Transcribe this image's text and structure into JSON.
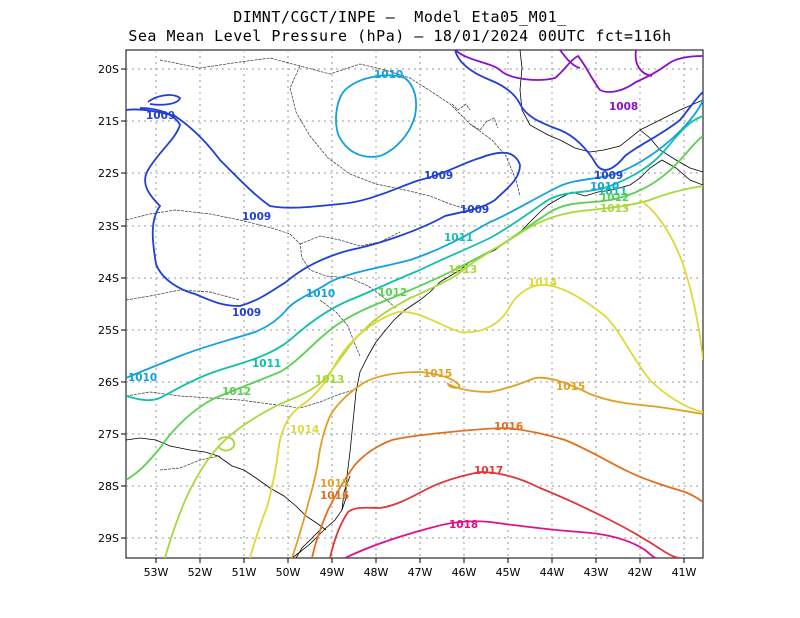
{
  "title_line1": "DIMNT/CGCT/INPE –  Model Eta05_M01_",
  "title_line2": "Sea Mean Level Pressure (hPa) – 18/01/2024 00UTC fct=116h",
  "axes": {
    "lon_labels": [
      "53W",
      "52W",
      "51W",
      "50W",
      "49W",
      "48W",
      "47W",
      "46W",
      "45W",
      "44W",
      "43W",
      "42W",
      "41W"
    ],
    "lat_labels": [
      "20S",
      "21S",
      "22S",
      "23S",
      "24S",
      "25S",
      "26S",
      "27S",
      "28S",
      "29S"
    ]
  },
  "contour_labels": {
    "c1008": "1008",
    "c1009": "1009",
    "c1010": "1010",
    "c1011": "1011",
    "c1012": "1012",
    "c1013": "1013",
    "c1014": "1014",
    "c1015": "1015",
    "c1016": "1016",
    "c1017": "1017",
    "c1018": "1018"
  },
  "colors": {
    "c1008": "#8a10c8",
    "c1009": "#1f3fd6",
    "c1010": "#11a0e0",
    "c1011": "#10c0a8",
    "c1012": "#58d050",
    "c1013": "#a8d838",
    "c1014": "#e0d838",
    "c1015": "#e0a020",
    "c1016": "#e07020",
    "c1017": "#e03838",
    "c1018": "#e01088"
  }
}
